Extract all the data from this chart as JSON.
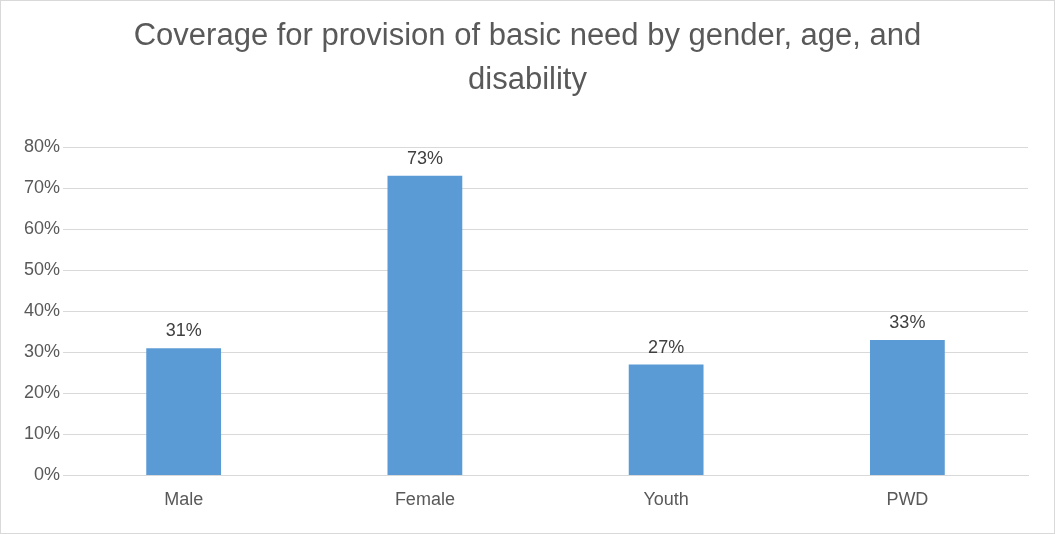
{
  "chart_data": {
    "type": "bar",
    "title": "Coverage for provision of basic need by gender, age, and disability",
    "categories": [
      "Male",
      "Female",
      "Youth",
      "PWD"
    ],
    "values": [
      31,
      73,
      27,
      33
    ],
    "value_labels": [
      "31%",
      "73%",
      "27%",
      "33%"
    ],
    "color": "#5b9bd5",
    "ylim": [
      0,
      80
    ],
    "yticks": [
      {
        "value": 0,
        "label": "0%"
      },
      {
        "value": 10,
        "label": "10%"
      },
      {
        "value": 20,
        "label": "20%"
      },
      {
        "value": 30,
        "label": "30%"
      },
      {
        "value": 40,
        "label": "40%"
      },
      {
        "value": 50,
        "label": "50%"
      },
      {
        "value": 60,
        "label": "60%"
      },
      {
        "value": 70,
        "label": "70%"
      },
      {
        "value": 80,
        "label": "80%"
      }
    ],
    "grid": "y",
    "legend": false
  }
}
